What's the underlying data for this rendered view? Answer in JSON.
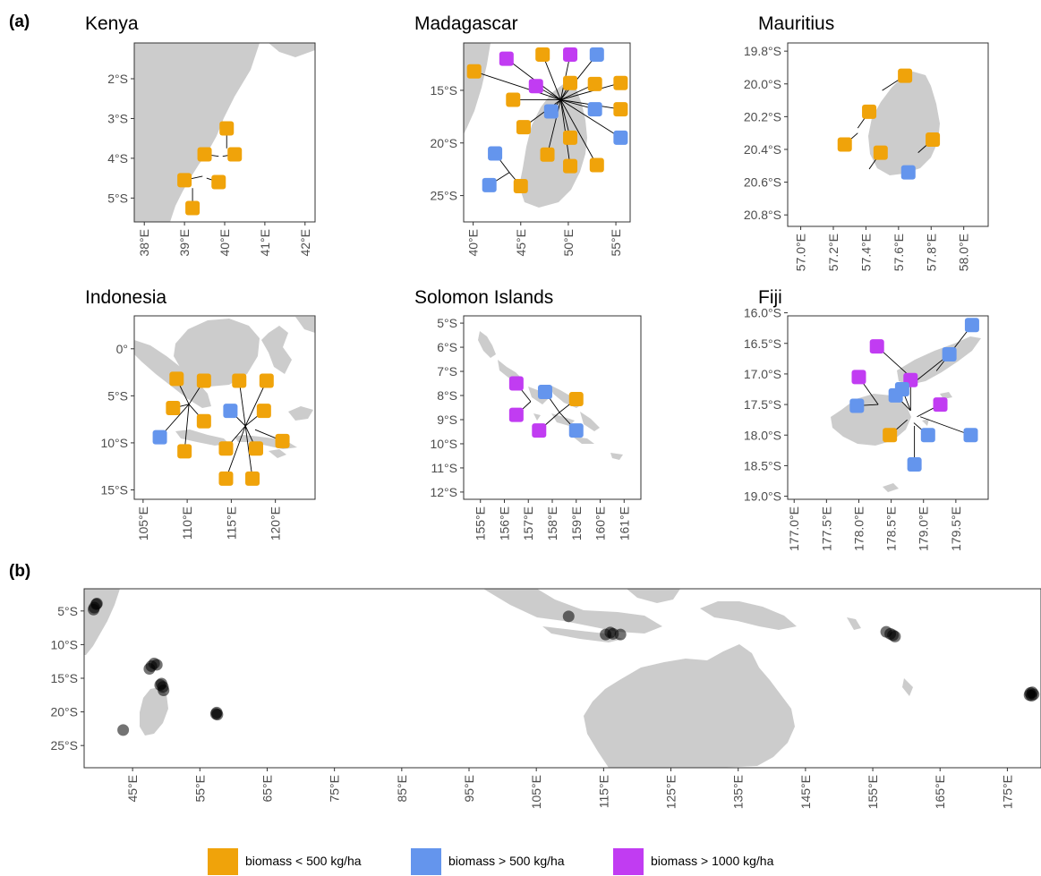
{
  "panel_labels": [
    "(a)",
    "(b)"
  ],
  "colors": {
    "low": "#F0A30A",
    "mid": "#6495ED",
    "high": "#C13CF2",
    "land": "#cccccc",
    "dot": "#000000"
  },
  "legend": [
    {
      "label": "biomass < 500 kg/ha",
      "color": "#F0A30A"
    },
    {
      "label": "biomass > 500 kg/ha",
      "color": "#6495ED"
    },
    {
      "label": "biomass > 1000 kg/ha",
      "color": "#C13CF2"
    }
  ],
  "chart_data": [
    {
      "type": "map",
      "title": "Kenya",
      "lon_range": [
        37.75,
        42.25
      ],
      "lat_range": [
        -5.6,
        -1.1
      ],
      "x_ticks": [
        {
          "v": 38,
          "label": "38°E"
        },
        {
          "v": 39,
          "label": "39°E"
        },
        {
          "v": 40,
          "label": "40°E"
        },
        {
          "v": 41,
          "label": "41°E"
        },
        {
          "v": 42,
          "label": "42°E"
        }
      ],
      "y_ticks": [
        {
          "v": -2,
          "label": "2°S"
        },
        {
          "v": -3,
          "label": "3°S"
        },
        {
          "v": -4,
          "label": "4°S"
        },
        {
          "v": -5,
          "label": "5°S"
        }
      ],
      "sites": [
        {
          "lon": 40.05,
          "lat": -3.25,
          "ax": 40.05,
          "ay": -3.75,
          "cat": "low"
        },
        {
          "lon": 39.5,
          "lat": -3.9,
          "ax": 39.85,
          "ay": -3.95,
          "cat": "low"
        },
        {
          "lon": 40.25,
          "lat": -3.9,
          "ax": 39.95,
          "ay": -3.95,
          "cat": "low"
        },
        {
          "lon": 39.0,
          "lat": -4.55,
          "ax": 39.45,
          "ay": -4.45,
          "cat": "low"
        },
        {
          "lon": 39.85,
          "lat": -4.6,
          "ax": 39.55,
          "ay": -4.5,
          "cat": "low"
        },
        {
          "lon": 39.2,
          "lat": -5.25,
          "ax": 39.2,
          "ay": -4.75,
          "cat": "low"
        }
      ]
    },
    {
      "type": "map",
      "title": "Madagascar",
      "lon_range": [
        39.0,
        56.5
      ],
      "lat_range": [
        -27.5,
        -10.5
      ],
      "x_ticks": [
        {
          "v": 40,
          "label": "40°E"
        },
        {
          "v": 45,
          "label": "45°E"
        },
        {
          "v": 50,
          "label": "50°E"
        },
        {
          "v": 55,
          "label": "55°E"
        }
      ],
      "y_ticks": [
        {
          "v": -15,
          "label": "15°S"
        },
        {
          "v": -20,
          "label": "20°S"
        },
        {
          "v": -25,
          "label": "25°S"
        }
      ],
      "sites": [
        {
          "lon": 40.1,
          "lat": -13.2,
          "ax": 49.2,
          "ay": -15.9,
          "cat": "low"
        },
        {
          "lon": 43.5,
          "lat": -12.0,
          "ax": 49.2,
          "ay": -15.9,
          "cat": "high"
        },
        {
          "lon": 47.3,
          "lat": -11.6,
          "ax": 49.2,
          "ay": -15.9,
          "cat": "low"
        },
        {
          "lon": 50.2,
          "lat": -11.6,
          "ax": 49.2,
          "ay": -15.9,
          "cat": "high"
        },
        {
          "lon": 53.0,
          "lat": -11.6,
          "ax": 49.2,
          "ay": -15.9,
          "cat": "mid"
        },
        {
          "lon": 46.6,
          "lat": -14.6,
          "ax": 49.2,
          "ay": -15.9,
          "cat": "high"
        },
        {
          "lon": 50.2,
          "lat": -14.3,
          "ax": 49.2,
          "ay": -15.9,
          "cat": "low"
        },
        {
          "lon": 52.8,
          "lat": -14.4,
          "ax": 49.2,
          "ay": -15.9,
          "cat": "low"
        },
        {
          "lon": 55.5,
          "lat": -14.3,
          "ax": 49.2,
          "ay": -15.9,
          "cat": "low"
        },
        {
          "lon": 44.2,
          "lat": -15.9,
          "ax": 49.2,
          "ay": -15.9,
          "cat": "low"
        },
        {
          "lon": 48.2,
          "lat": -17.0,
          "ax": 49.2,
          "ay": -15.9,
          "cat": "mid"
        },
        {
          "lon": 52.8,
          "lat": -16.8,
          "ax": 49.2,
          "ay": -15.9,
          "cat": "mid"
        },
        {
          "lon": 55.5,
          "lat": -16.8,
          "ax": 49.2,
          "ay": -15.9,
          "cat": "low"
        },
        {
          "lon": 45.3,
          "lat": -18.5,
          "ax": 49.2,
          "ay": -15.9,
          "cat": "low"
        },
        {
          "lon": 50.2,
          "lat": -19.5,
          "ax": 49.2,
          "ay": -15.9,
          "cat": "low"
        },
        {
          "lon": 55.5,
          "lat": -19.5,
          "ax": 49.2,
          "ay": -15.9,
          "cat": "mid"
        },
        {
          "lon": 47.8,
          "lat": -21.1,
          "ax": 49.2,
          "ay": -15.9,
          "cat": "low"
        },
        {
          "lon": 50.2,
          "lat": -22.2,
          "ax": 49.2,
          "ay": -15.9,
          "cat": "low"
        },
        {
          "lon": 53.0,
          "lat": -22.1,
          "ax": 49.2,
          "ay": -15.9,
          "cat": "low"
        },
        {
          "lon": 42.3,
          "lat": -21.0,
          "ax": 43.8,
          "ay": -22.8,
          "cat": "mid"
        },
        {
          "lon": 41.7,
          "lat": -24.0,
          "ax": 43.8,
          "ay": -22.8,
          "cat": "mid"
        },
        {
          "lon": 45.0,
          "lat": -24.1,
          "ax": 43.8,
          "ay": -22.8,
          "cat": "low"
        }
      ]
    },
    {
      "type": "map",
      "title": "Mauritius",
      "lon_range": [
        56.92,
        58.15
      ],
      "lat_range": [
        -20.87,
        -19.75
      ],
      "x_ticks": [
        {
          "v": 57.0,
          "label": "57.0°E"
        },
        {
          "v": 57.2,
          "label": "57.2°E"
        },
        {
          "v": 57.4,
          "label": "57.4°E"
        },
        {
          "v": 57.6,
          "label": "57.6°E"
        },
        {
          "v": 57.8,
          "label": "57.8°E"
        },
        {
          "v": 58.0,
          "label": "58.0°E"
        }
      ],
      "y_ticks": [
        {
          "v": -19.8,
          "label": "19.8°S"
        },
        {
          "v": -20.0,
          "label": "20.0°S"
        },
        {
          "v": -20.2,
          "label": "20.2°S"
        },
        {
          "v": -20.4,
          "label": "20.4°S"
        },
        {
          "v": -20.6,
          "label": "20.6°S"
        },
        {
          "v": -20.8,
          "label": "20.8°S"
        }
      ],
      "sites": [
        {
          "lon": 57.64,
          "lat": -19.95,
          "ax": 57.5,
          "ay": -20.04,
          "cat": "low"
        },
        {
          "lon": 57.42,
          "lat": -20.17,
          "ax": 57.35,
          "ay": -20.27,
          "cat": "low"
        },
        {
          "lon": 57.27,
          "lat": -20.37,
          "ax": 57.35,
          "ay": -20.3,
          "cat": "low"
        },
        {
          "lon": 57.49,
          "lat": -20.42,
          "ax": 57.42,
          "ay": -20.52,
          "cat": "low"
        },
        {
          "lon": 57.81,
          "lat": -20.34,
          "ax": 57.72,
          "ay": -20.42,
          "cat": "low"
        },
        {
          "lon": 57.66,
          "lat": -20.54,
          "ax": 57.66,
          "ay": -20.54,
          "cat": "mid"
        }
      ]
    },
    {
      "type": "map",
      "title": "Indonesia",
      "lon_range": [
        104.0,
        124.5
      ],
      "lat_range": [
        -16.0,
        3.5
      ],
      "x_ticks": [
        {
          "v": 105,
          "label": "105°E"
        },
        {
          "v": 110,
          "label": "110°E"
        },
        {
          "v": 115,
          "label": "115°E"
        },
        {
          "v": 120,
          "label": "120°E"
        }
      ],
      "y_ticks": [
        {
          "v": 0,
          "label": "0°"
        },
        {
          "v": -5,
          "label": "5°S"
        },
        {
          "v": -10,
          "label": "10°S"
        },
        {
          "v": -15,
          "label": "15°S"
        }
      ],
      "sites": [
        {
          "lon": 108.8,
          "lat": -3.2,
          "ax": 110.2,
          "ay": -5.9,
          "cat": "low"
        },
        {
          "lon": 111.9,
          "lat": -3.4,
          "ax": 110.2,
          "ay": -5.9,
          "cat": "low"
        },
        {
          "lon": 108.4,
          "lat": -6.3,
          "ax": 110.2,
          "ay": -5.9,
          "cat": "low"
        },
        {
          "lon": 111.9,
          "lat": -7.7,
          "ax": 110.2,
          "ay": -5.9,
          "cat": "low"
        },
        {
          "lon": 106.9,
          "lat": -9.4,
          "ax": 110.2,
          "ay": -5.9,
          "cat": "mid"
        },
        {
          "lon": 109.7,
          "lat": -10.9,
          "ax": 110.2,
          "ay": -5.9,
          "cat": "low"
        },
        {
          "lon": 115.9,
          "lat": -3.4,
          "ax": 116.6,
          "ay": -8.2,
          "cat": "low"
        },
        {
          "lon": 119.0,
          "lat": -3.4,
          "ax": 116.6,
          "ay": -8.2,
          "cat": "low"
        },
        {
          "lon": 114.9,
          "lat": -6.6,
          "ax": 116.6,
          "ay": -8.2,
          "cat": "mid"
        },
        {
          "lon": 118.7,
          "lat": -6.6,
          "ax": 116.6,
          "ay": -8.2,
          "cat": "low"
        },
        {
          "lon": 114.4,
          "lat": -10.6,
          "ax": 116.6,
          "ay": -8.2,
          "cat": "low"
        },
        {
          "lon": 117.8,
          "lat": -10.6,
          "ax": 116.6,
          "ay": -8.2,
          "cat": "low"
        },
        {
          "lon": 120.8,
          "lat": -9.8,
          "ax": 117.7,
          "ay": -8.6,
          "cat": "low"
        },
        {
          "lon": 114.4,
          "lat": -13.8,
          "ax": 116.6,
          "ay": -8.2,
          "cat": "low"
        },
        {
          "lon": 117.4,
          "lat": -13.8,
          "ax": 116.6,
          "ay": -8.2,
          "cat": "low"
        }
      ]
    },
    {
      "type": "map",
      "title": "Solomon Islands",
      "lon_range": [
        154.3,
        161.7
      ],
      "lat_range": [
        -12.3,
        -4.7
      ],
      "x_ticks": [
        {
          "v": 155,
          "label": "155°E"
        },
        {
          "v": 156,
          "label": "156°E"
        },
        {
          "v": 157,
          "label": "157°E"
        },
        {
          "v": 158,
          "label": "158°E"
        },
        {
          "v": 159,
          "label": "159°E"
        },
        {
          "v": 160,
          "label": "160°E"
        },
        {
          "v": 161,
          "label": "161°E"
        }
      ],
      "y_ticks": [
        {
          "v": -5,
          "label": "5°S"
        },
        {
          "v": -6,
          "label": "6°S"
        },
        {
          "v": -7,
          "label": "7°S"
        },
        {
          "v": -8,
          "label": "8°S"
        },
        {
          "v": -9,
          "label": "9°S"
        },
        {
          "v": -10,
          "label": "10°S"
        },
        {
          "v": -11,
          "label": "11°S"
        },
        {
          "v": -12,
          "label": "12°S"
        }
      ],
      "sites": [
        {
          "lon": 156.5,
          "lat": -7.5,
          "ax": 157.1,
          "ay": -8.25,
          "cat": "high"
        },
        {
          "lon": 156.5,
          "lat": -8.8,
          "ax": 157.1,
          "ay": -8.25,
          "cat": "high"
        },
        {
          "lon": 157.7,
          "lat": -7.85,
          "ax": 158.3,
          "ay": -8.7,
          "cat": "mid"
        },
        {
          "lon": 159.0,
          "lat": -8.15,
          "ax": 158.3,
          "ay": -8.7,
          "cat": "low"
        },
        {
          "lon": 157.45,
          "lat": -9.45,
          "ax": 158.3,
          "ay": -8.7,
          "cat": "high"
        },
        {
          "lon": 159.0,
          "lat": -9.45,
          "ax": 158.3,
          "ay": -8.7,
          "cat": "mid"
        }
      ]
    },
    {
      "type": "map",
      "title": "Fiji",
      "lon_range": [
        176.9,
        180.0
      ],
      "lat_range": [
        -19.05,
        -16.05
      ],
      "x_ticks": [
        {
          "v": 177.0,
          "label": "177.0°E"
        },
        {
          "v": 177.5,
          "label": "177.5°E"
        },
        {
          "v": 178.0,
          "label": "178.0°E"
        },
        {
          "v": 178.5,
          "label": "178.5°E"
        },
        {
          "v": 179.0,
          "label": "179.0°E"
        },
        {
          "v": 179.5,
          "label": "179.5°E"
        }
      ],
      "y_ticks": [
        {
          "v": -16.0,
          "label": "16.0°S"
        },
        {
          "v": -16.5,
          "label": "16.5°S"
        },
        {
          "v": -17.0,
          "label": "17.0°S"
        },
        {
          "v": -17.5,
          "label": "17.5°S"
        },
        {
          "v": -18.0,
          "label": "18.0°S"
        },
        {
          "v": -18.5,
          "label": "18.5°S"
        },
        {
          "v": -19.0,
          "label": "19.0°S"
        }
      ],
      "sites": [
        {
          "lon": 179.75,
          "lat": -16.2,
          "ax": 179.2,
          "ay": -16.95,
          "cat": "mid"
        },
        {
          "lon": 178.28,
          "lat": -16.55,
          "ax": 178.75,
          "ay": -17.0,
          "cat": "high"
        },
        {
          "lon": 179.4,
          "lat": -16.68,
          "ax": 178.9,
          "ay": -17.1,
          "cat": "mid"
        },
        {
          "lon": 178.0,
          "lat": -17.05,
          "ax": 178.3,
          "ay": -17.5,
          "cat": "high"
        },
        {
          "lon": 178.8,
          "lat": -17.1,
          "ax": 178.8,
          "ay": -17.6,
          "cat": "high"
        },
        {
          "lon": 178.67,
          "lat": -17.25,
          "ax": 178.8,
          "ay": -17.6,
          "cat": "mid"
        },
        {
          "lon": 178.57,
          "lat": -17.35,
          "ax": 178.8,
          "ay": -17.6,
          "cat": "mid"
        },
        {
          "lon": 177.97,
          "lat": -17.52,
          "ax": 178.3,
          "ay": -17.5,
          "cat": "mid"
        },
        {
          "lon": 179.26,
          "lat": -17.5,
          "ax": 178.9,
          "ay": -17.7,
          "cat": "high"
        },
        {
          "lon": 178.48,
          "lat": -18.0,
          "ax": 178.75,
          "ay": -17.75,
          "cat": "low"
        },
        {
          "lon": 179.07,
          "lat": -18.0,
          "ax": 178.85,
          "ay": -17.8,
          "cat": "mid"
        },
        {
          "lon": 179.73,
          "lat": -18.0,
          "ax": 178.95,
          "ay": -17.7,
          "cat": "mid"
        },
        {
          "lon": 178.86,
          "lat": -18.48,
          "ax": 178.86,
          "ay": -17.85,
          "cat": "mid"
        }
      ]
    },
    {
      "type": "map",
      "title": "",
      "lon_range": [
        37.8,
        180.0
      ],
      "lat_range": [
        -28.3,
        -1.7
      ],
      "x_ticks": [
        {
          "v": 45,
          "label": "45°E"
        },
        {
          "v": 55,
          "label": "55°E"
        },
        {
          "v": 65,
          "label": "65°E"
        },
        {
          "v": 75,
          "label": "75°E"
        },
        {
          "v": 85,
          "label": "85°E"
        },
        {
          "v": 95,
          "label": "95°E"
        },
        {
          "v": 105,
          "label": "105°E"
        },
        {
          "v": 115,
          "label": "115°E"
        },
        {
          "v": 125,
          "label": "125°E"
        },
        {
          "v": 135,
          "label": "135°E"
        },
        {
          "v": 145,
          "label": "145°E"
        },
        {
          "v": 155,
          "label": "155°E"
        },
        {
          "v": 165,
          "label": "165°E"
        },
        {
          "v": 175,
          "label": "175°E"
        }
      ],
      "y_ticks": [
        {
          "v": -5,
          "label": "5°S"
        },
        {
          "v": -10,
          "label": "10°S"
        },
        {
          "v": -15,
          "label": "15°S"
        },
        {
          "v": -20,
          "label": "20°S"
        },
        {
          "v": -25,
          "label": "25°S"
        }
      ],
      "points": [
        [
          39.6,
          -4.0
        ],
        [
          39.3,
          -4.5
        ],
        [
          39.2,
          -4.8
        ],
        [
          39.7,
          -3.9
        ],
        [
          47.8,
          -13.2
        ],
        [
          48.2,
          -12.8
        ],
        [
          47.5,
          -13.6
        ],
        [
          48.6,
          -13.0
        ],
        [
          49.3,
          -15.8
        ],
        [
          49.5,
          -16.3
        ],
        [
          49.1,
          -16.0
        ],
        [
          49.6,
          -16.8
        ],
        [
          43.6,
          -22.7
        ],
        [
          57.5,
          -20.1
        ],
        [
          57.6,
          -20.4
        ],
        [
          57.4,
          -20.3
        ],
        [
          109.8,
          -5.8
        ],
        [
          115.3,
          -8.5
        ],
        [
          116.0,
          -8.2
        ],
        [
          116.4,
          -8.4
        ],
        [
          117.5,
          -8.5
        ],
        [
          157.0,
          -8.1
        ],
        [
          157.6,
          -8.4
        ],
        [
          158.3,
          -8.8
        ],
        [
          158.0,
          -8.6
        ],
        [
          178.4,
          -17.2
        ],
        [
          178.6,
          -17.6
        ],
        [
          178.7,
          -17.1
        ],
        [
          178.3,
          -17.5
        ],
        [
          178.9,
          -17.4
        ]
      ]
    }
  ]
}
